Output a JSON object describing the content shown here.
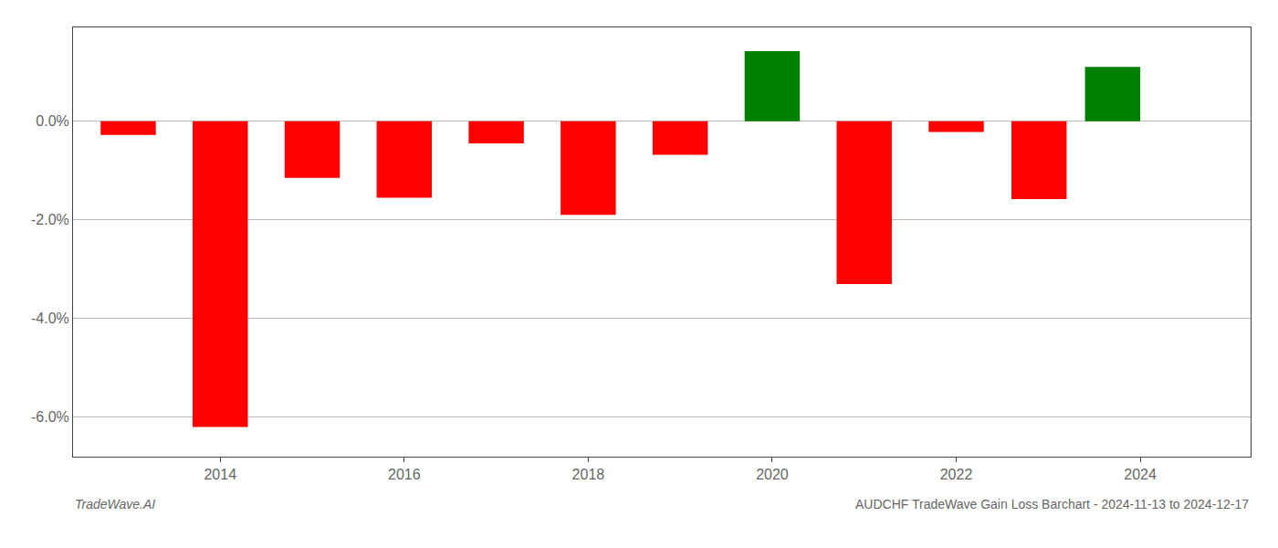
{
  "chart_data": {
    "type": "bar",
    "x": [
      2013,
      2014,
      2015,
      2016,
      2017,
      2018,
      2019,
      2020,
      2021,
      2022,
      2022.9,
      2023.7
    ],
    "values": [
      -0.28,
      -6.2,
      -1.15,
      -1.55,
      -0.45,
      -1.9,
      -0.68,
      1.42,
      -3.3,
      -0.22,
      -1.58,
      1.1
    ],
    "colors": [
      "#ff0000",
      "#ff0000",
      "#ff0000",
      "#ff0000",
      "#ff0000",
      "#ff0000",
      "#ff0000",
      "#008000",
      "#ff0000",
      "#ff0000",
      "#ff0000",
      "#008000"
    ],
    "xlim": [
      2012.4,
      2025.2
    ],
    "xticks": [
      2014,
      2016,
      2018,
      2020,
      2022,
      2024
    ],
    "ylim": [
      -6.8,
      1.9
    ],
    "yticks": [
      {
        "value": 0.0,
        "label": "0.0%"
      },
      {
        "value": -2.0,
        "label": "-2.0%"
      },
      {
        "value": -4.0,
        "label": "-4.0%"
      },
      {
        "value": -6.0,
        "label": "-6.0%"
      }
    ],
    "grid": true,
    "annotations": [
      "TradeWave.AI",
      "AUDCHF TradeWave Gain Loss Barchart - 2024-11-13 to 2024-12-17"
    ]
  }
}
